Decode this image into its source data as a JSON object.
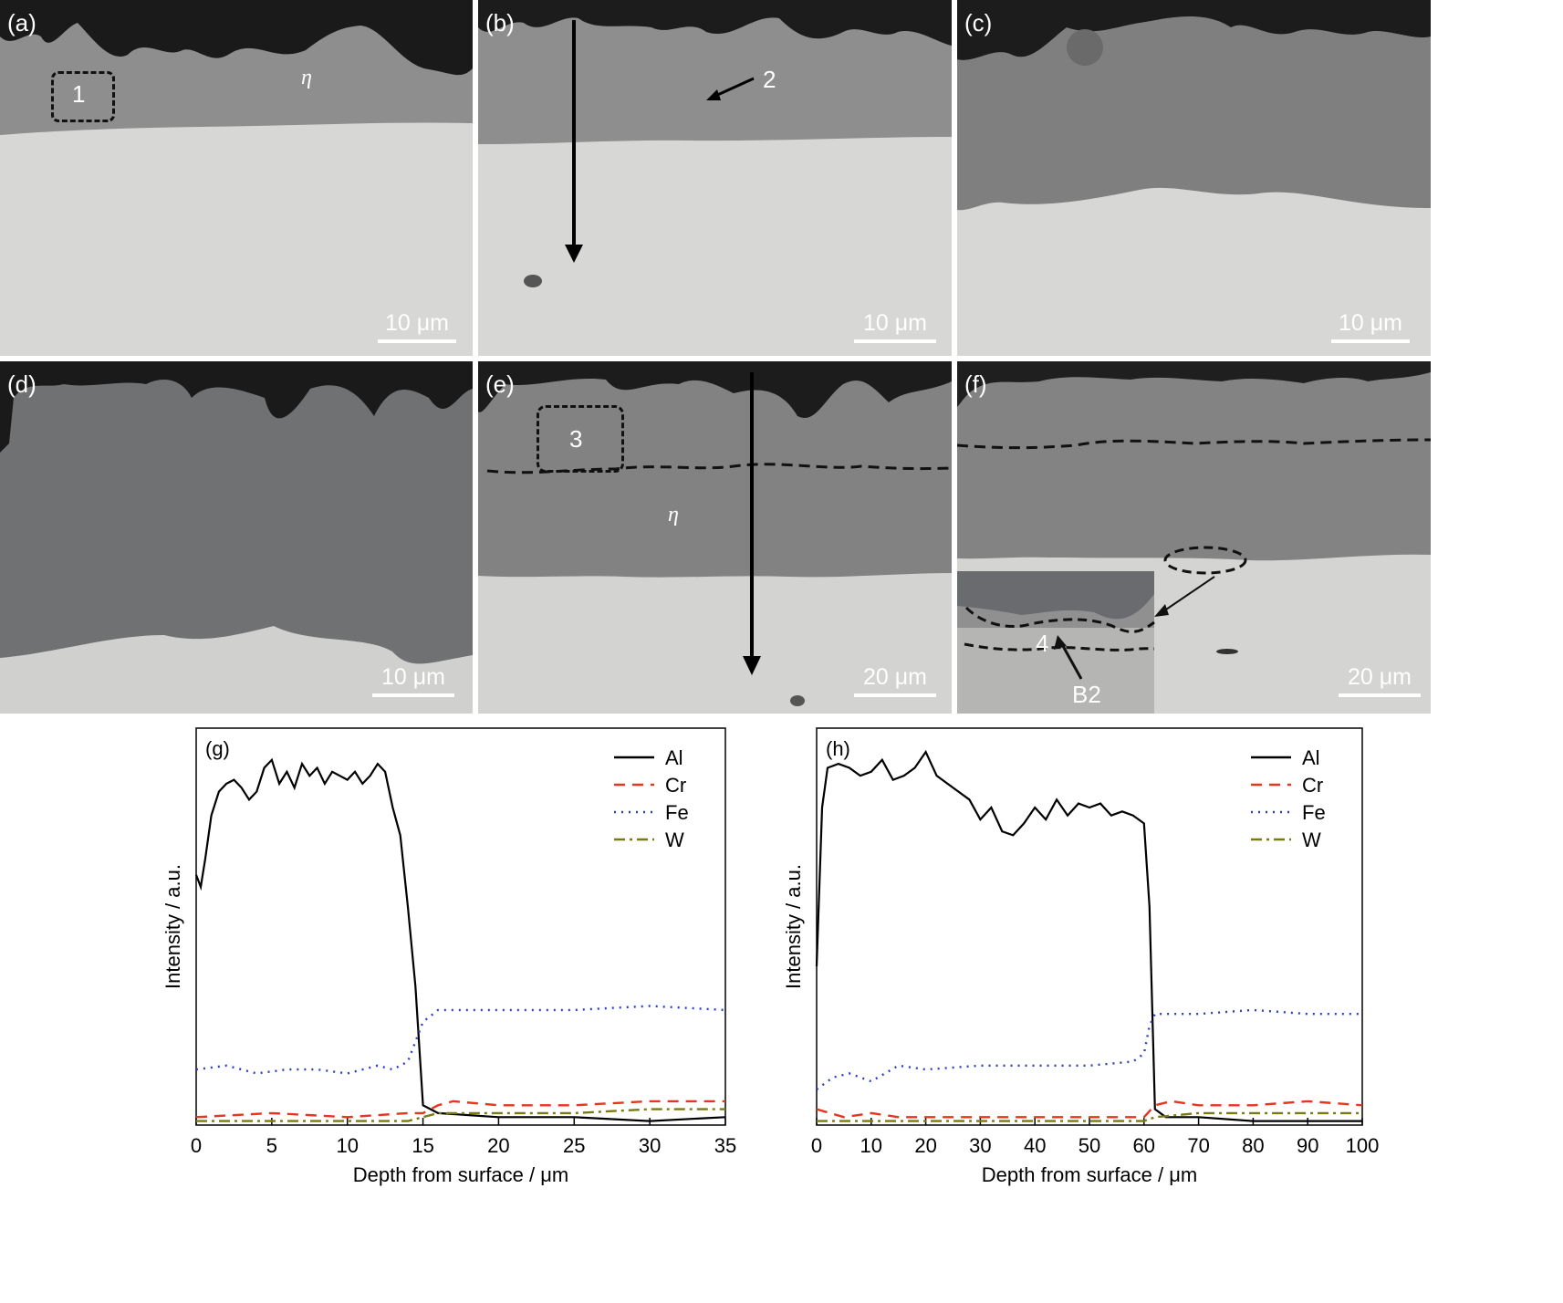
{
  "panels": {
    "a": {
      "label": "(a)",
      "scale": "10 μm",
      "region": "1",
      "phase": "η"
    },
    "b": {
      "label": "(b)",
      "scale": "10 μm",
      "point": "2"
    },
    "c": {
      "label": "(c)",
      "scale": "10 μm"
    },
    "d": {
      "label": "(d)",
      "scale": "10 μm"
    },
    "e": {
      "label": "(e)",
      "scale": "20 μm",
      "region": "3",
      "phase": "η"
    },
    "f": {
      "label": "(f)",
      "scale": "20 μm",
      "region": "4",
      "phase": "B2"
    }
  },
  "colors": {
    "Al": "#000000",
    "Cr": "#e8351e",
    "Fe": "#2b3fc4",
    "W": "#7a7a14"
  },
  "chart_data": [
    {
      "type": "line",
      "panel_label": "(g)",
      "xlabel": "Depth from surface / μm",
      "ylabel": "Intensity / a.u.",
      "xlim": [
        0,
        35
      ],
      "ylim": [
        0,
        100
      ],
      "xticks": [
        0,
        5,
        10,
        15,
        20,
        25,
        30,
        35
      ],
      "legend_position": "top-right",
      "series": [
        {
          "name": "Al",
          "style": "solid",
          "x": [
            0,
            0.3,
            0.6,
            1,
            1.5,
            2,
            2.5,
            3,
            3.5,
            4,
            4.5,
            5,
            5.5,
            6,
            6.5,
            7,
            7.5,
            8,
            8.5,
            9,
            9.5,
            10,
            10.5,
            11,
            11.5,
            12,
            12.5,
            13,
            13.5,
            14,
            14.5,
            15,
            16,
            20,
            25,
            30,
            35
          ],
          "y": [
            63,
            60,
            67,
            78,
            84,
            86,
            87,
            85,
            82,
            84,
            90,
            92,
            86,
            89,
            85,
            91,
            88,
            90,
            86,
            89,
            88,
            87,
            89,
            86,
            88,
            91,
            89,
            80,
            73,
            55,
            35,
            5,
            3,
            2,
            2,
            1,
            2
          ]
        },
        {
          "name": "Cr",
          "style": "dashed",
          "x": [
            0,
            5,
            10,
            14,
            15,
            16,
            17,
            20,
            25,
            30,
            35
          ],
          "y": [
            2,
            3,
            2,
            3,
            3,
            5,
            6,
            5,
            5,
            6,
            6
          ]
        },
        {
          "name": "Fe",
          "style": "dotted",
          "x": [
            0,
            2,
            4,
            6,
            8,
            10,
            12,
            13,
            14,
            15,
            16,
            20,
            25,
            30,
            35
          ],
          "y": [
            14,
            15,
            13,
            14,
            14,
            13,
            15,
            14,
            16,
            26,
            29,
            29,
            29,
            30,
            29
          ]
        },
        {
          "name": "W",
          "style": "dashdot",
          "x": [
            0,
            5,
            10,
            14,
            15,
            16,
            20,
            25,
            30,
            35
          ],
          "y": [
            1,
            1,
            1,
            1,
            2,
            3,
            3,
            3,
            4,
            4
          ]
        }
      ]
    },
    {
      "type": "line",
      "panel_label": "(h)",
      "xlabel": "Depth from surface / μm",
      "ylabel": "Intensity / a.u.",
      "xlim": [
        0,
        100
      ],
      "ylim": [
        0,
        100
      ],
      "xticks": [
        0,
        10,
        20,
        30,
        40,
        50,
        60,
        70,
        80,
        90,
        100
      ],
      "legend_position": "top-right",
      "series": [
        {
          "name": "Al",
          "style": "solid",
          "x": [
            0,
            1,
            2,
            4,
            6,
            8,
            10,
            12,
            14,
            16,
            18,
            20,
            22,
            24,
            26,
            28,
            30,
            32,
            34,
            36,
            38,
            40,
            42,
            44,
            46,
            48,
            50,
            52,
            54,
            56,
            58,
            60,
            61,
            62,
            64,
            70,
            80,
            90,
            100
          ],
          "y": [
            40,
            80,
            90,
            91,
            90,
            88,
            89,
            92,
            87,
            88,
            90,
            94,
            88,
            86,
            84,
            82,
            77,
            80,
            74,
            73,
            76,
            80,
            77,
            82,
            78,
            81,
            80,
            81,
            78,
            79,
            78,
            76,
            55,
            4,
            2,
            2,
            1,
            1,
            1
          ]
        },
        {
          "name": "Cr",
          "style": "dashed",
          "x": [
            0,
            5,
            10,
            15,
            20,
            40,
            60,
            62,
            65,
            70,
            80,
            90,
            100
          ],
          "y": [
            4,
            2,
            3,
            2,
            2,
            2,
            2,
            5,
            6,
            5,
            5,
            6,
            5
          ]
        },
        {
          "name": "Fe",
          "style": "dotted",
          "x": [
            0,
            3,
            6,
            10,
            15,
            20,
            30,
            40,
            50,
            58,
            60,
            61,
            62,
            70,
            80,
            90,
            100
          ],
          "y": [
            9,
            12,
            13,
            11,
            15,
            14,
            15,
            15,
            15,
            16,
            18,
            25,
            28,
            28,
            29,
            28,
            28
          ]
        },
        {
          "name": "W",
          "style": "dashdot",
          "x": [
            0,
            10,
            30,
            60,
            62,
            70,
            80,
            90,
            100
          ],
          "y": [
            1,
            1,
            1,
            1,
            2,
            3,
            3,
            3,
            3
          ]
        }
      ]
    }
  ]
}
